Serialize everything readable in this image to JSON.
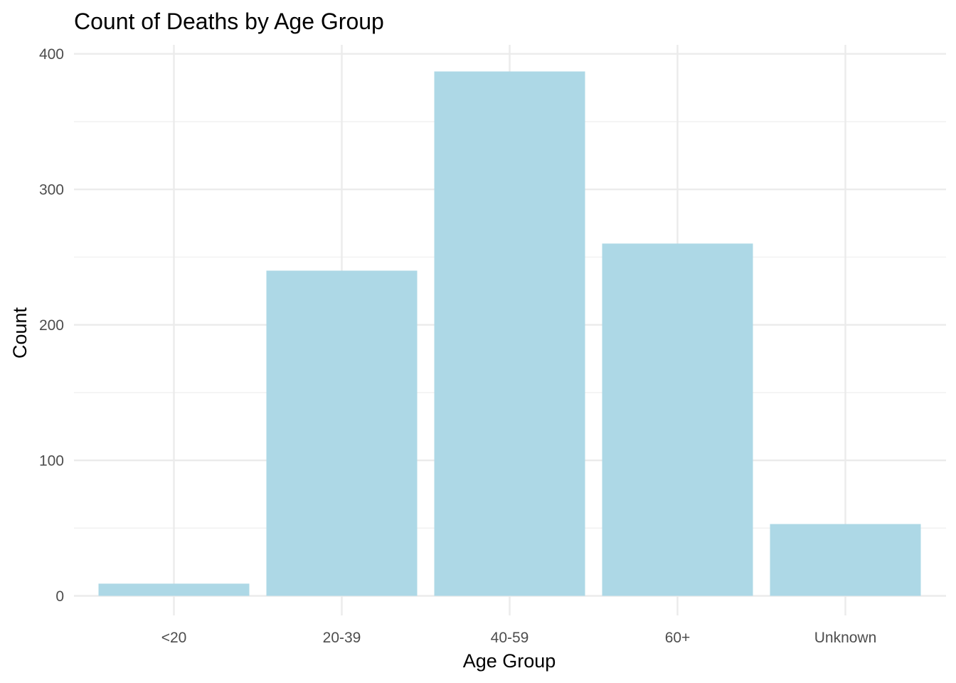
{
  "colors": {
    "bar": "#add8e6",
    "grid_major": "#ebebeb",
    "grid_minor": "#f2f2f2",
    "background": "#ffffff"
  },
  "chart_data": {
    "type": "bar",
    "title": "Count of Deaths by Age Group",
    "xlabel": "Age Group",
    "ylabel": "Count",
    "categories": [
      "<20",
      "20-39",
      "40-59",
      "60+",
      "Unknown"
    ],
    "values": [
      9,
      240,
      387,
      260,
      53
    ],
    "ylim": [
      0,
      400
    ],
    "yticks": [
      0,
      100,
      200,
      300,
      400
    ],
    "grid": true,
    "legend": "none"
  }
}
